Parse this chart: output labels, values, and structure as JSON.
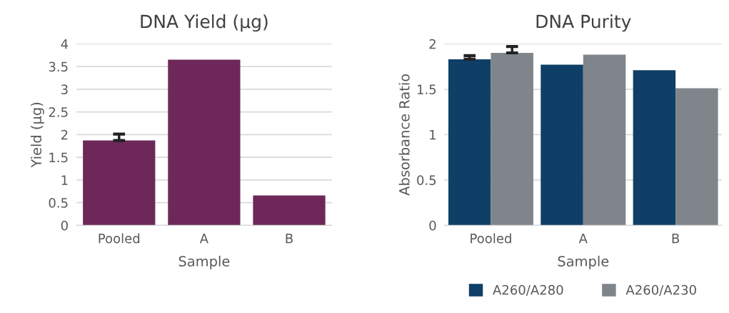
{
  "chart_data": [
    {
      "type": "bar",
      "title": "DNA Yield (µg)",
      "xlabel": "Sample",
      "ylabel": "Yield (µg)",
      "categories": [
        "Pooled",
        "A",
        "B"
      ],
      "series": [
        {
          "color": "#6d2859",
          "values": [
            1.87,
            3.65,
            0.66
          ],
          "errors": [
            0.14,
            null,
            null
          ]
        }
      ],
      "ylim": [
        0,
        4
      ],
      "yticks": [
        0,
        0.5,
        1,
        1.5,
        2,
        2.5,
        3,
        3.5,
        4
      ],
      "grid": "y",
      "legend": false
    },
    {
      "type": "bar",
      "title": "DNA Purity",
      "xlabel": "Sample",
      "ylabel": "Absorbance Ratio",
      "categories": [
        "Pooled",
        "A",
        "B"
      ],
      "series": [
        {
          "name": "A260/A280",
          "color": "#0f3f66",
          "values": [
            1.83,
            1.77,
            1.71
          ],
          "errors": [
            0.04,
            null,
            null
          ]
        },
        {
          "name": "A260/A230",
          "color": "#7f858b",
          "values": [
            1.9,
            1.88,
            1.51
          ],
          "errors": [
            0.07,
            null,
            null
          ]
        }
      ],
      "ylim": [
        0,
        2
      ],
      "yticks": [
        0,
        0.5,
        1,
        1.5,
        2
      ],
      "grid": "y",
      "legend": "bottom"
    }
  ]
}
